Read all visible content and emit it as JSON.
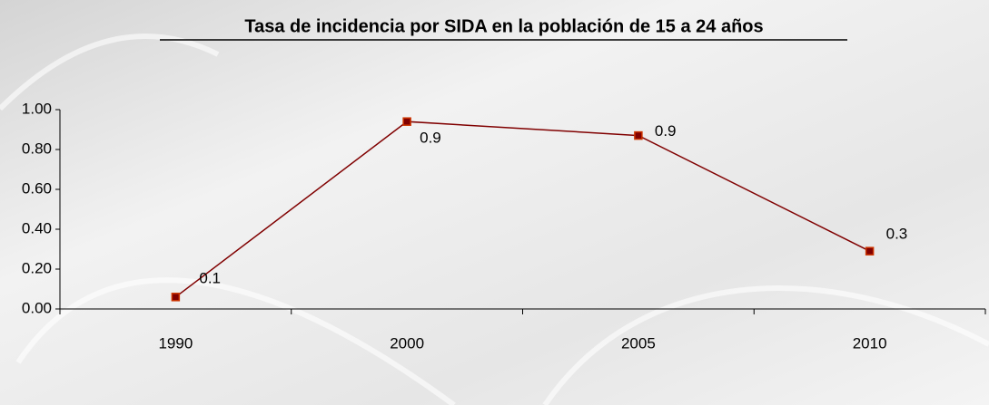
{
  "chart_data": {
    "type": "line",
    "title": "Tasa de incidencia por SIDA en la población de 15 a 24 años",
    "categories": [
      "1990",
      "2000",
      "2005",
      "2010"
    ],
    "series": [
      {
        "name": "Tasa de incidencia",
        "color": "#800000",
        "marker_color": "#cc3300",
        "values": [
          0.06,
          0.94,
          0.87,
          0.29
        ],
        "value_labels": [
          "0.1",
          "0.9",
          "0.9",
          "0.3"
        ]
      }
    ],
    "ylim": [
      0,
      1
    ],
    "yticks": [
      {
        "value": 0,
        "label": "0.00"
      },
      {
        "value": 0.2,
        "label": "0.20"
      },
      {
        "value": 0.4,
        "label": "0.40"
      },
      {
        "value": 0.6,
        "label": "0.60"
      },
      {
        "value": 0.8,
        "label": "0.80"
      },
      {
        "value": 1,
        "label": "1.00"
      }
    ],
    "grid": false
  }
}
